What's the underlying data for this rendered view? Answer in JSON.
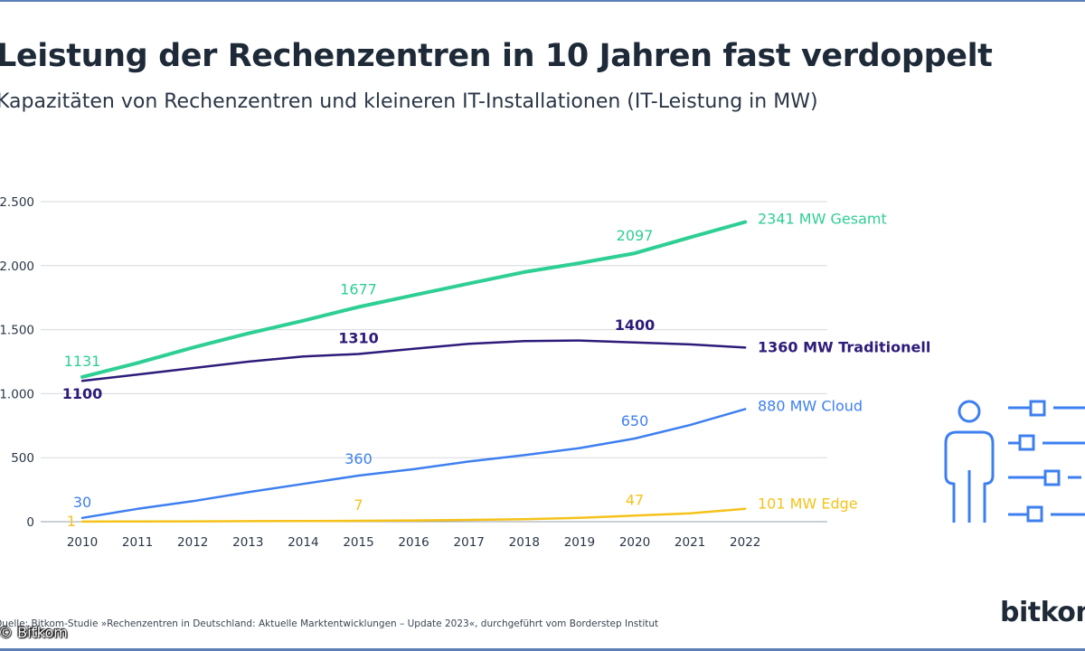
{
  "title": "Leistung der Rechenzentren in 10 Jahren fast verdoppelt",
  "subtitle": "Kapazitäten von Rechenzentren und kleineren IT-Installationen (IT-Leistung in MW)",
  "source": "Quelle: Bitkom-Studie »Rechenzentren in Deutschland: Aktuelle Marktentwicklungen – Update 2023«, durchgeführt vom Borderstep Institut",
  "copyright": "© Bitkom",
  "logo": "bitkom",
  "icon": "person-with-list-icon",
  "colors": {
    "gesamt": "#2ecf94",
    "traditionell": "#2e1b7a",
    "cloud": "#3e7ff0",
    "edge": "#f5c21a",
    "grid": "#d6d9de",
    "icon": "#3e7ff0"
  },
  "chart_data": {
    "type": "line",
    "title": "Leistung der Rechenzentren in 10 Jahren fast verdoppelt",
    "xlabel": "",
    "ylabel": "",
    "x": [
      2010,
      2011,
      2012,
      2013,
      2014,
      2015,
      2016,
      2017,
      2018,
      2019,
      2020,
      2021,
      2022
    ],
    "ylim": [
      0,
      2500
    ],
    "y_ticks": [
      0,
      500,
      1000,
      1500,
      2000,
      2500
    ],
    "y_tick_labels": [
      "0",
      "500",
      "1.000",
      "1.500",
      "2.000",
      "2.500"
    ],
    "grid": true,
    "series": [
      {
        "key": "gesamt",
        "name": "Gesamt",
        "end_label": "2341 MW Gesamt",
        "values": [
          1131,
          1240,
          1360,
          1470,
          1570,
          1677,
          1770,
          1860,
          1950,
          2020,
          2097,
          2220,
          2341
        ],
        "annotations": [
          {
            "year": 2010,
            "label": "1131"
          },
          {
            "year": 2015,
            "label": "1677"
          },
          {
            "year": 2020,
            "label": "2097"
          }
        ]
      },
      {
        "key": "traditionell",
        "name": "Traditionell",
        "end_label": "1360 MW Traditionell",
        "values": [
          1100,
          1150,
          1200,
          1250,
          1290,
          1310,
          1350,
          1390,
          1410,
          1415,
          1400,
          1385,
          1360
        ],
        "annotations": [
          {
            "year": 2010,
            "label": "1100"
          },
          {
            "year": 2015,
            "label": "1310"
          },
          {
            "year": 2020,
            "label": "1400"
          }
        ]
      },
      {
        "key": "cloud",
        "name": "Cloud",
        "end_label": "880 MW Cloud",
        "values": [
          30,
          100,
          160,
          230,
          295,
          360,
          410,
          470,
          520,
          575,
          650,
          755,
          880
        ],
        "annotations": [
          {
            "year": 2010,
            "label": "30"
          },
          {
            "year": 2015,
            "label": "360"
          },
          {
            "year": 2020,
            "label": "650"
          }
        ]
      },
      {
        "key": "edge",
        "name": "Edge",
        "end_label": "101 MW Edge",
        "values": [
          1,
          2,
          3,
          4,
          5,
          7,
          10,
          14,
          20,
          30,
          47,
          65,
          101
        ],
        "annotations": [
          {
            "year": 2010,
            "label": "1"
          },
          {
            "year": 2015,
            "label": "7"
          },
          {
            "year": 2020,
            "label": "47"
          }
        ]
      }
    ]
  }
}
